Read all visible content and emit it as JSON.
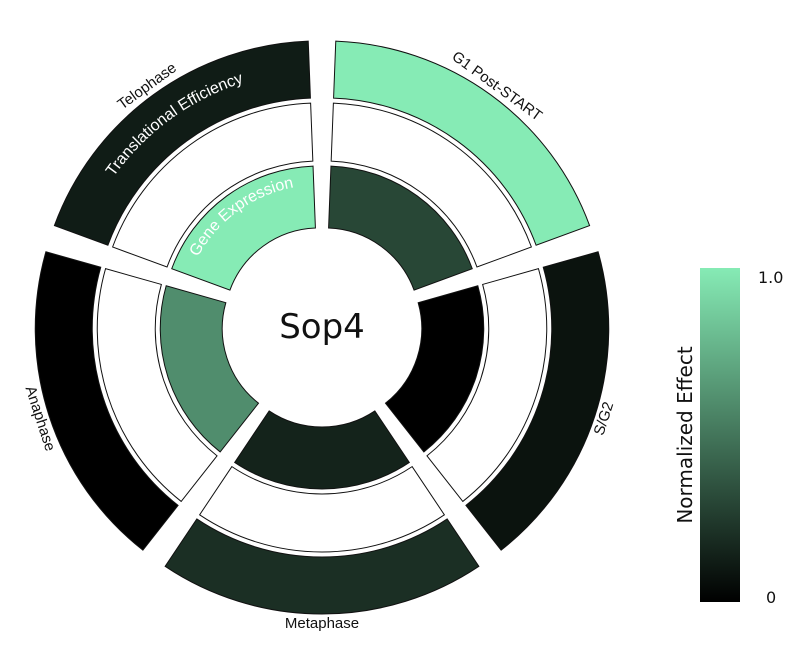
{
  "chart_data": {
    "type": "radial-heatmap",
    "center_label": "Sop4",
    "phases": [
      "G1 Post-START",
      "S/G2",
      "Metaphase",
      "Anaphase",
      "Telophase"
    ],
    "rings": [
      {
        "name": "Gene Expression",
        "values": [
          0.3,
          0.0,
          0.15,
          0.6,
          1.0
        ]
      },
      {
        "name": "",
        "values": [
          null,
          null,
          null,
          null,
          null
        ]
      },
      {
        "name": "Translational Efficiency",
        "values": [
          1.0,
          0.08,
          0.2,
          0.0,
          0.12
        ]
      }
    ],
    "colorbar": {
      "title": "Normalized Effect",
      "min_label": "0",
      "max_label": "1.0",
      "range": [
        0,
        1
      ],
      "low_color": "#000000",
      "high_color": "#86ebb5"
    },
    "missing_color": "#ffffff"
  }
}
